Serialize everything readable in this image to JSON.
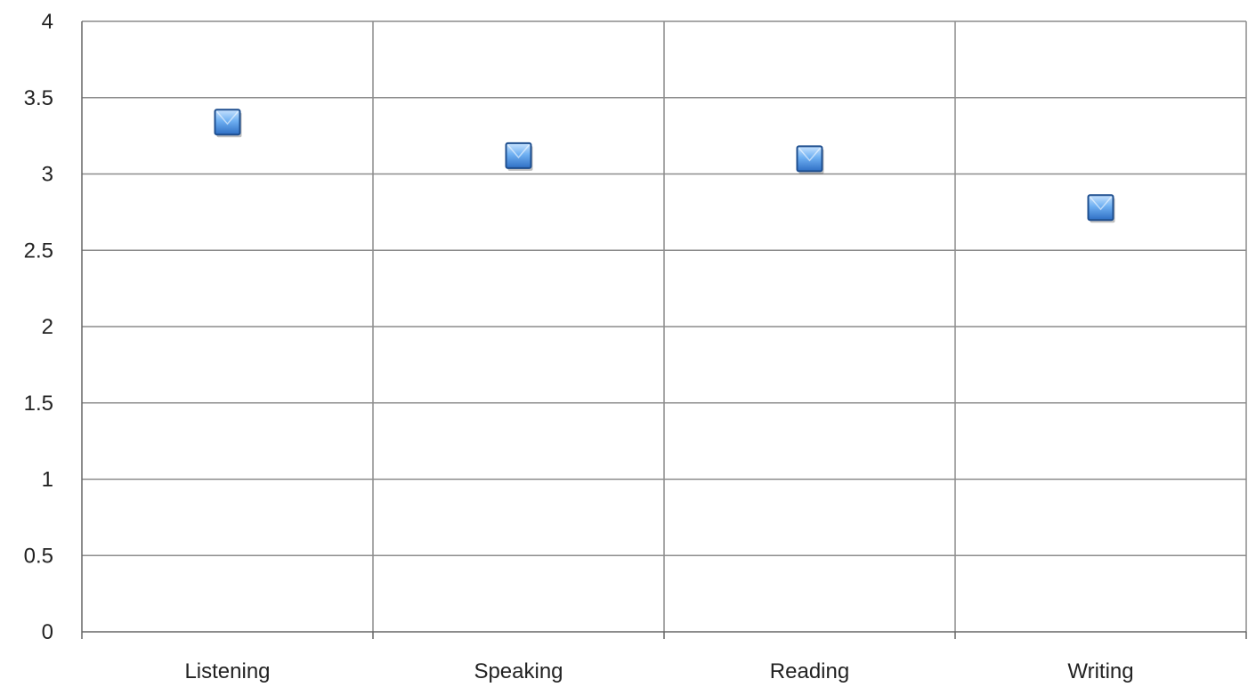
{
  "chart_data": {
    "type": "scatter",
    "title": "",
    "xlabel": "",
    "ylabel": "",
    "categories": [
      "Listening",
      "Speaking",
      "Reading",
      "Writing"
    ],
    "series": [
      {
        "values": [
          3.34,
          3.12,
          3.1,
          2.78
        ],
        "color": "#3d7fd4",
        "marker": "square"
      }
    ],
    "ylim": [
      0,
      4
    ],
    "yticks": [
      "0",
      "0.5",
      "1",
      "1.5",
      "2",
      "2.5",
      "3",
      "3.5",
      "4"
    ],
    "grid": {
      "horizontal": true,
      "vertical": true
    },
    "legend": "none"
  }
}
